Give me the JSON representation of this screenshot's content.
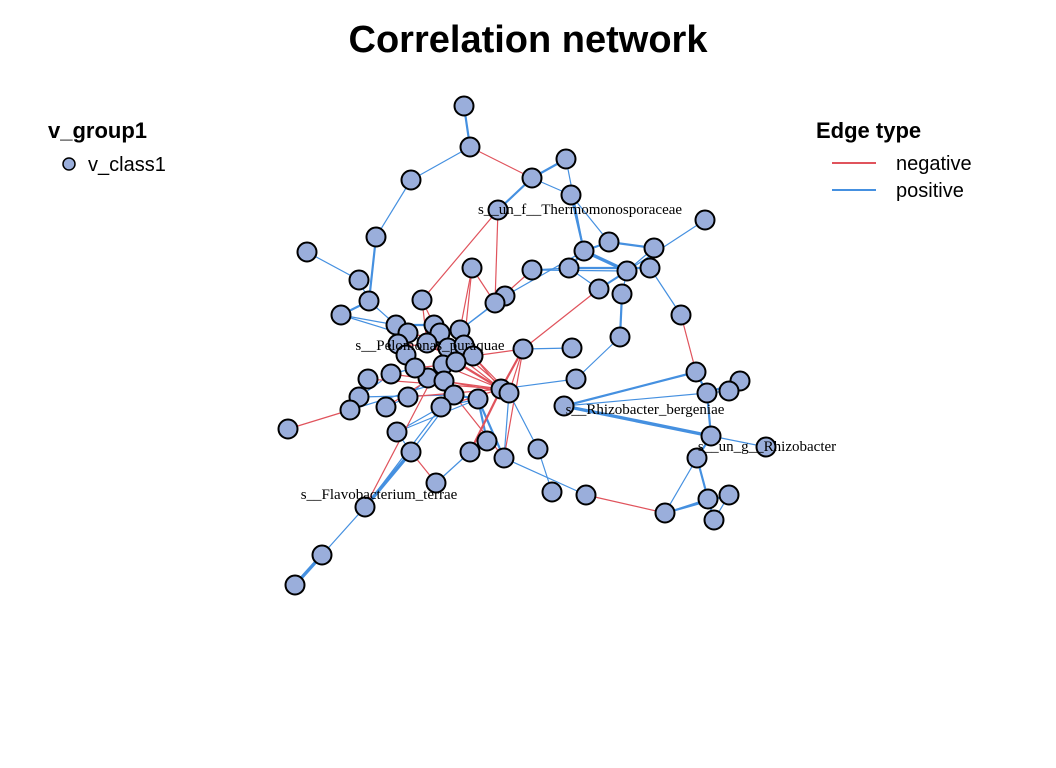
{
  "title": "Correlation network",
  "colors": {
    "negative": "#e0535c",
    "positive": "#4590e0",
    "node": "#9aaedb"
  },
  "legend_group": {
    "title": "v_group1",
    "item": "v_class1"
  },
  "legend_edge": {
    "title": "Edge type",
    "negative": "negative",
    "positive": "positive"
  },
  "labels": {
    "thermo": "s__un_f__Thermomonosporaceae",
    "pelomonas": "s__Pelomonas_puraquae",
    "rhizo_berg": "s__Rhizobacter_bergeniae",
    "rhizo": "s__un_g__Rhizobacter",
    "flavo": "s__Flavobacterium_terrae"
  }
}
